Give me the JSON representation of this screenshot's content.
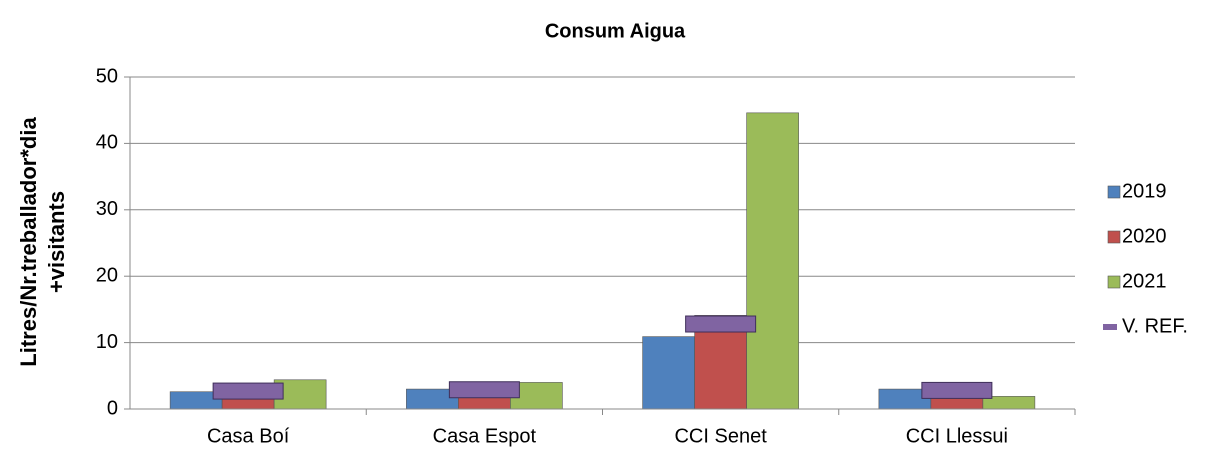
{
  "chart_data": {
    "type": "bar",
    "title": "Consum Aigua",
    "y_label": [
      "Litres/Nr.treballador*dia",
      "+visitants"
    ],
    "categories": [
      "Casa Boí",
      "Casa Espot",
      "CCI Senet",
      "CCI Llessui"
    ],
    "series": [
      {
        "name": "2019",
        "color": "#4f81bd",
        "values": [
          2.6,
          3.0,
          10.9,
          3.0
        ]
      },
      {
        "name": "2020",
        "color": "#c0504d",
        "values": [
          2.2,
          2.5,
          14.1,
          2.3
        ]
      },
      {
        "name": "2021",
        "color": "#9bbb59",
        "values": [
          4.4,
          4.0,
          44.6,
          1.9
        ]
      },
      {
        "name": "V. REF.",
        "color": "#8064a2",
        "style": "marker",
        "values": [
          2.7,
          2.9,
          12.8,
          2.8
        ]
      }
    ],
    "ylim": [
      0,
      50
    ],
    "yticks": [
      0,
      10,
      20,
      30,
      40,
      50
    ],
    "grid": true,
    "legend": "right"
  }
}
